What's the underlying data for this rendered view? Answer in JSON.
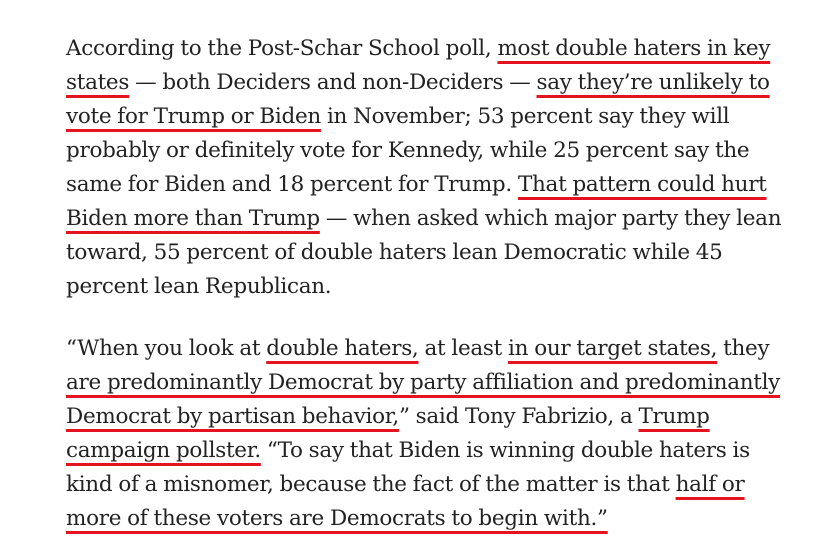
{
  "article": {
    "paragraphs": [
      {
        "segments": [
          {
            "text": "According to the Post-Schar School poll, ",
            "underline": false
          },
          {
            "text": "most double haters in key states",
            "underline": true
          },
          {
            "text": " — both Deciders and non-Deciders — ",
            "underline": false
          },
          {
            "text": "say they’re unlikely to vote for Trump or Biden",
            "underline": true
          },
          {
            "text": " in November; 53 percent say they will probably or definitely vote for Kennedy, while 25 percent say the same for Biden and 18 percent for Trump. ",
            "underline": false
          },
          {
            "text": "That pattern could hurt Biden more than Trump",
            "underline": true
          },
          {
            "text": " — when asked which major party they lean toward, 55 percent of double haters lean Democratic while 45 percent lean Republican.",
            "underline": false
          }
        ]
      },
      {
        "segments": [
          {
            "text": "“When you look at ",
            "underline": false
          },
          {
            "text": "double haters,",
            "underline": true
          },
          {
            "text": " at least ",
            "underline": false
          },
          {
            "text": "in our target states,",
            "underline": true
          },
          {
            "text": " they ",
            "underline": false
          },
          {
            "text": "are predominantly Democrat by party affiliation and predominantly Democrat by partisan behavior,",
            "underline": true
          },
          {
            "text": "” said Tony Fabrizio, a ",
            "underline": false
          },
          {
            "text": "Trump campaign pollster.",
            "underline": true
          },
          {
            "text": " “To say that Biden is winning double haters is kind of a misnomer, because the fact of the matter is that ",
            "underline": false
          },
          {
            "text": "half or more of these voters are Democrats to begin with.”",
            "underline": true
          }
        ]
      }
    ]
  },
  "colors": {
    "text": "#222222",
    "underline": "#e3141f",
    "background": "#ffffff"
  }
}
